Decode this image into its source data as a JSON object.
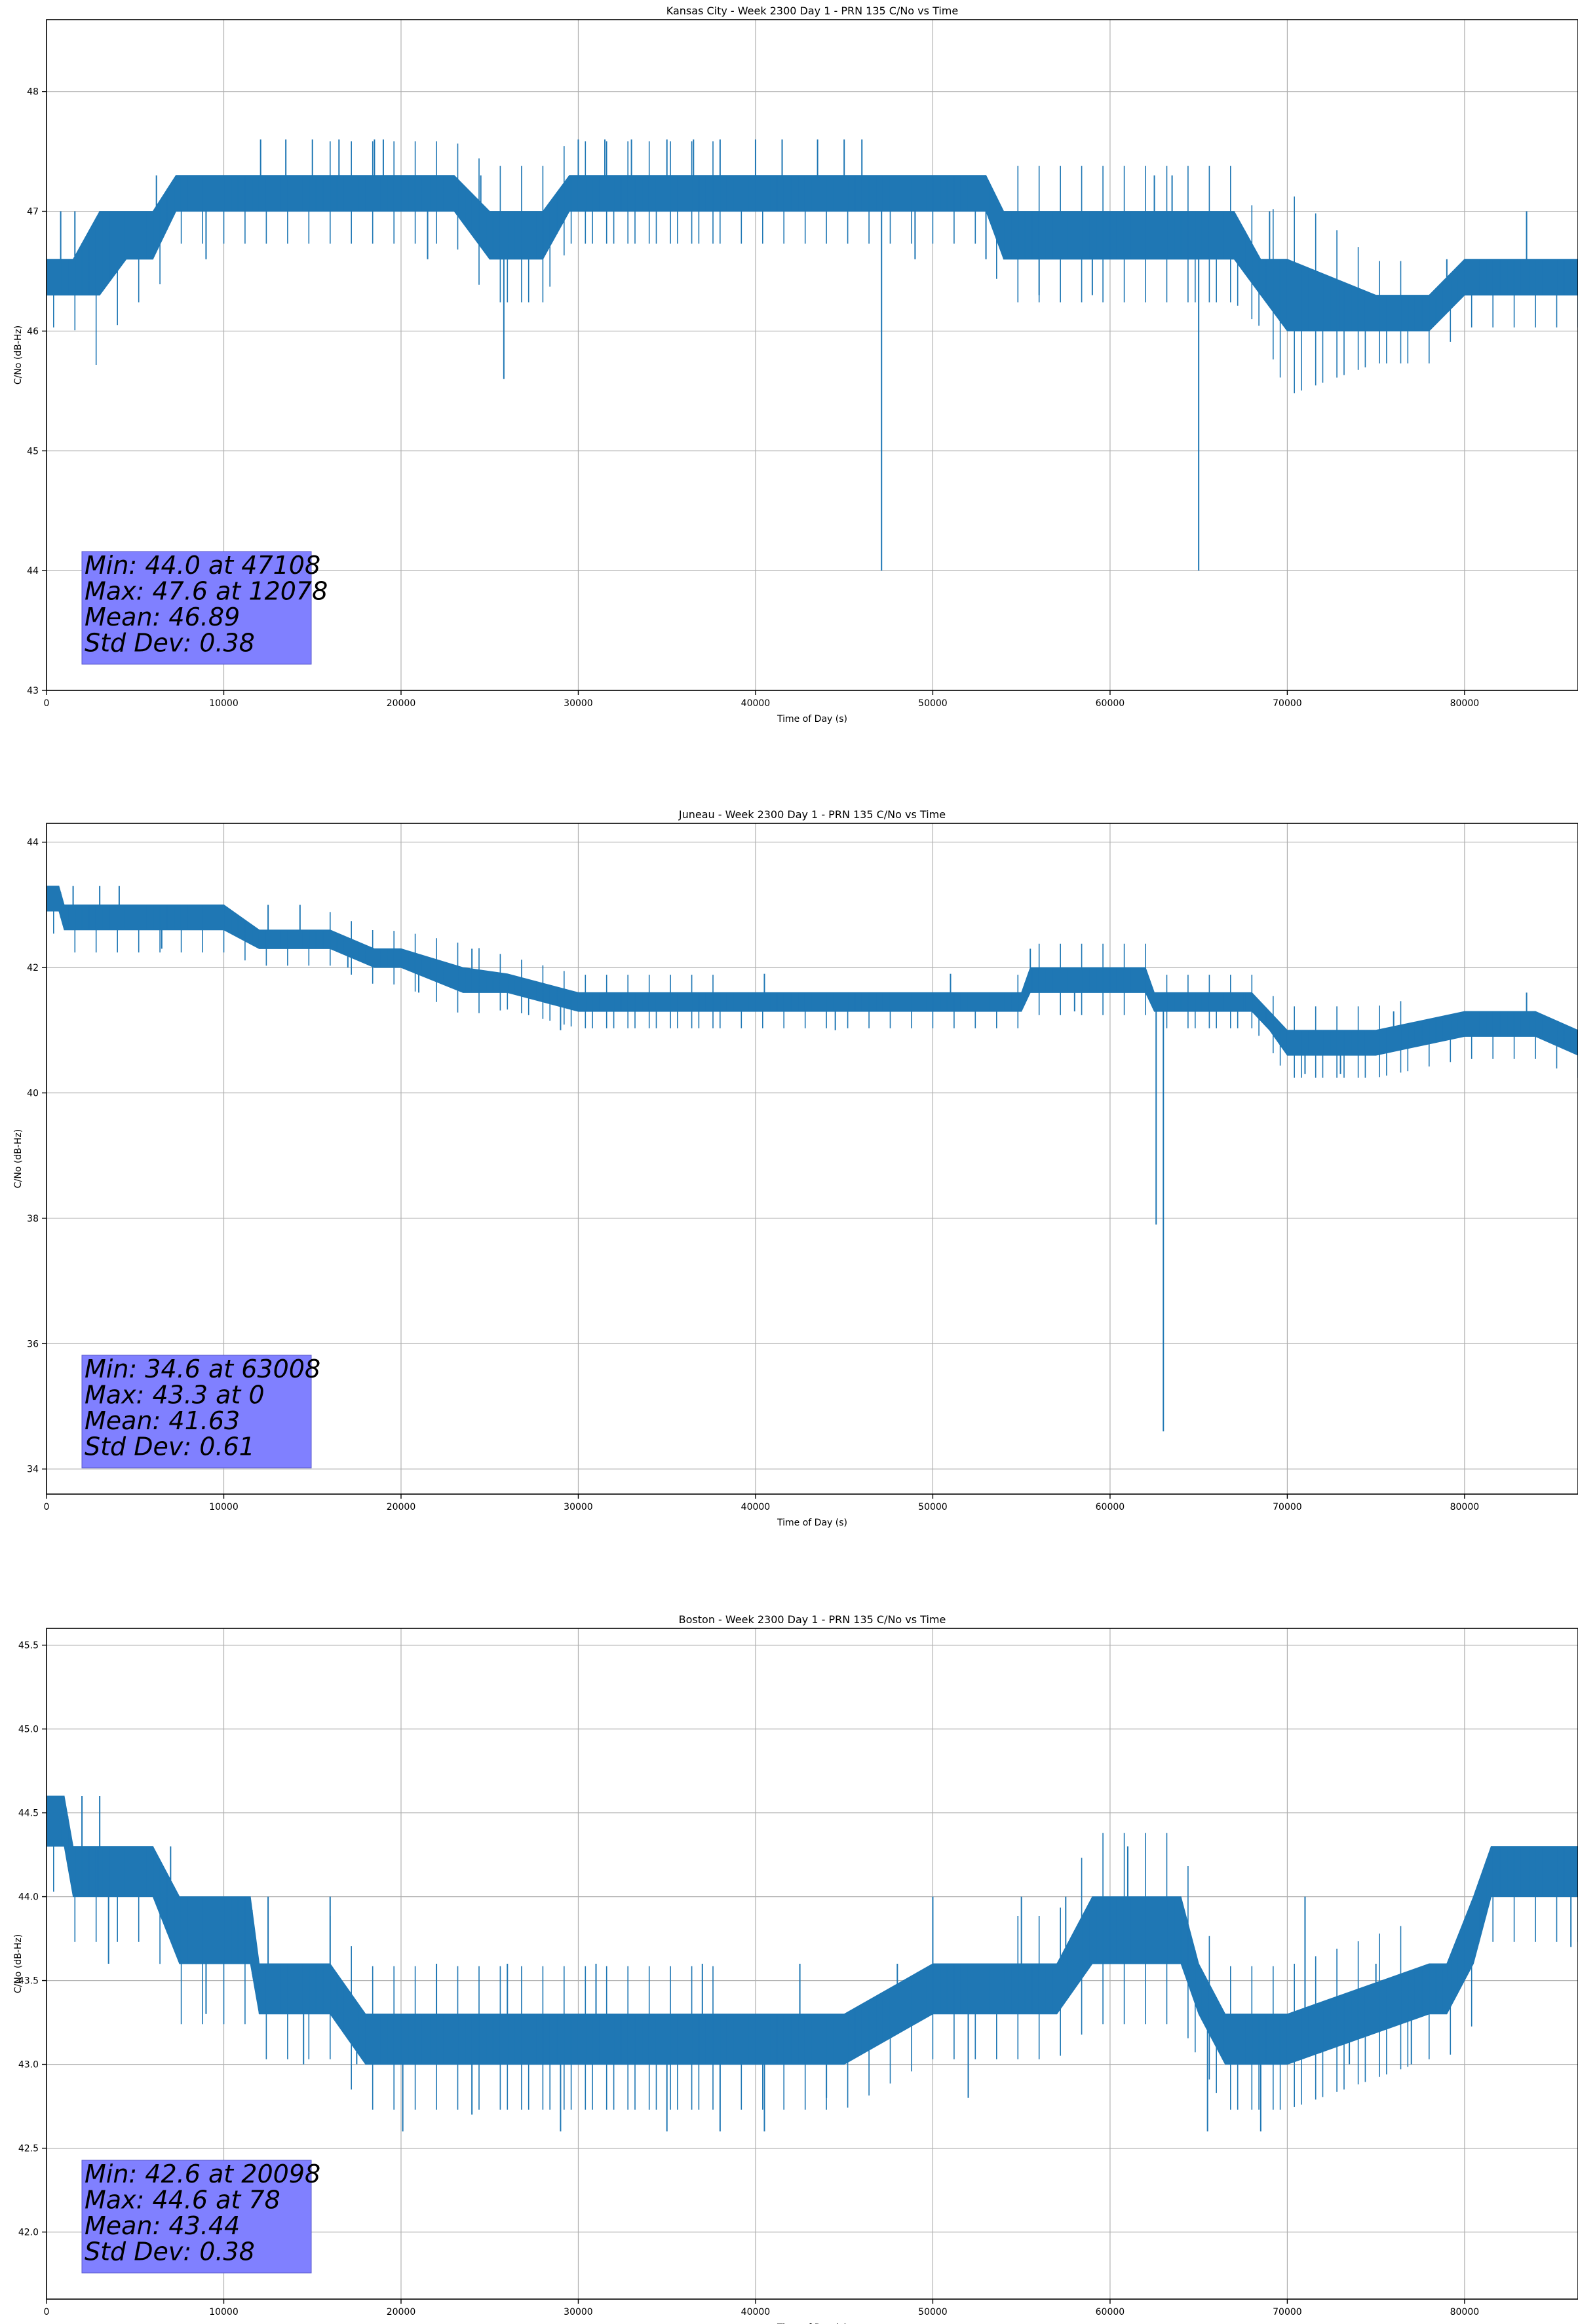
{
  "colors": {
    "series": "#1f77b4",
    "stats_box": "#8080ff",
    "grid": "#b0b0b0"
  },
  "chart_data": [
    {
      "type": "line",
      "title": "Kansas City - Week 2300 Day 1 - PRN 135 C/No vs Time",
      "xlabel": "Time of Day (s)",
      "ylabel": "C/No (dB-Hz)",
      "xlim": [
        0,
        86400
      ],
      "ylim": [
        43.0,
        48.6
      ],
      "grid": true,
      "x_ticks": [
        0,
        10000,
        20000,
        30000,
        40000,
        50000,
        60000,
        70000,
        80000
      ],
      "x_tick_labels": [
        "0",
        "10000",
        "20000",
        "30000",
        "40000",
        "50000",
        "60000",
        "70000",
        "80000"
      ],
      "y_ticks": [
        43,
        44,
        45,
        46,
        47,
        48
      ],
      "y_tick_labels": [
        "43",
        "44",
        "45",
        "46",
        "47",
        "48"
      ],
      "band": {
        "x": [
          0,
          1500,
          3000,
          4500,
          6000,
          7300,
          10000,
          14000,
          18000,
          21000,
          23000,
          25000,
          27000,
          28000,
          29500,
          33000,
          38000,
          42000,
          44000,
          47000,
          50000,
          53000,
          54000,
          57000,
          58000,
          62000,
          67000,
          68500,
          70000,
          75000,
          78000,
          80000,
          86400
        ],
        "low": [
          46.3,
          46.3,
          46.3,
          46.6,
          46.6,
          47.0,
          47.0,
          47.0,
          47.0,
          47.0,
          47.0,
          46.6,
          46.6,
          46.6,
          47.0,
          47.0,
          47.0,
          47.0,
          47.0,
          47.0,
          47.0,
          47.0,
          46.6,
          46.6,
          46.6,
          46.6,
          46.6,
          46.3,
          46.0,
          46.0,
          46.0,
          46.3,
          46.3
        ],
        "high": [
          46.6,
          46.6,
          47.0,
          47.0,
          47.0,
          47.3,
          47.3,
          47.3,
          47.3,
          47.3,
          47.3,
          47.0,
          47.0,
          47.0,
          47.3,
          47.3,
          47.3,
          47.3,
          47.3,
          47.3,
          47.3,
          47.3,
          47.0,
          47.0,
          47.0,
          47.0,
          47.0,
          46.6,
          46.6,
          46.3,
          46.3,
          46.6,
          46.6
        ]
      },
      "spikes": [
        [
          800,
          47.0
        ],
        [
          1600,
          47.0
        ],
        [
          6200,
          47.3
        ],
        [
          9000,
          46.6
        ],
        [
          12078,
          47.6
        ],
        [
          13500,
          47.6
        ],
        [
          15000,
          47.6
        ],
        [
          16500,
          47.6
        ],
        [
          18500,
          47.6
        ],
        [
          19000,
          47.6
        ],
        [
          21500,
          46.6
        ],
        [
          25800,
          45.6
        ],
        [
          24500,
          47.3
        ],
        [
          30000,
          47.6
        ],
        [
          31500,
          47.6
        ],
        [
          33000,
          47.6
        ],
        [
          35000,
          47.6
        ],
        [
          36500,
          47.6
        ],
        [
          38000,
          47.6
        ],
        [
          40000,
          47.6
        ],
        [
          41500,
          47.6
        ],
        [
          43500,
          47.6
        ],
        [
          45000,
          47.6
        ],
        [
          46000,
          47.6
        ],
        [
          47108,
          44.0
        ],
        [
          49000,
          46.6
        ],
        [
          53000,
          46.6
        ],
        [
          56000,
          46.3
        ],
        [
          59000,
          46.3
        ],
        [
          62500,
          47.3
        ],
        [
          63500,
          47.3
        ],
        [
          65000,
          44.0
        ],
        [
          66500,
          47.0
        ],
        [
          69000,
          47.0
        ],
        [
          73000,
          46.0
        ],
        [
          76000,
          46.3
        ],
        [
          79000,
          46.6
        ],
        [
          83500,
          47.0
        ]
      ],
      "stats": [
        "Min: 44.0 at 47108",
        "Max: 47.6 at 12078",
        "Mean: 46.89",
        "Std Dev: 0.38"
      ]
    },
    {
      "type": "line",
      "title": "Juneau - Week 2300 Day 1 - PRN 135 C/No vs Time",
      "xlabel": "Time of Day (s)",
      "ylabel": "C/No (dB-Hz)",
      "xlim": [
        0,
        86400
      ],
      "ylim": [
        33.6,
        44.3
      ],
      "grid": true,
      "x_ticks": [
        0,
        10000,
        20000,
        30000,
        40000,
        50000,
        60000,
        70000,
        80000
      ],
      "x_tick_labels": [
        "0",
        "10000",
        "20000",
        "30000",
        "40000",
        "50000",
        "60000",
        "70000",
        "80000"
      ],
      "y_ticks": [
        34,
        36,
        38,
        40,
        42,
        44
      ],
      "y_tick_labels": [
        "34",
        "36",
        "38",
        "40",
        "42",
        "44"
      ],
      "band": {
        "x": [
          0,
          700,
          1000,
          5000,
          10000,
          12000,
          14000,
          16000,
          18500,
          20000,
          23500,
          26000,
          30000,
          35000,
          40000,
          45000,
          50000,
          55000,
          55500,
          58000,
          62000,
          62500,
          66000,
          68000,
          69000,
          70000,
          75000,
          80000,
          84000,
          86400
        ],
        "low": [
          42.9,
          42.9,
          42.6,
          42.6,
          42.6,
          42.3,
          42.3,
          42.3,
          42.0,
          42.0,
          41.6,
          41.6,
          41.3,
          41.3,
          41.3,
          41.3,
          41.3,
          41.3,
          41.6,
          41.6,
          41.6,
          41.3,
          41.3,
          41.3,
          41.0,
          40.6,
          40.6,
          40.9,
          40.9,
          40.6
        ],
        "high": [
          43.3,
          43.3,
          43.0,
          43.0,
          43.0,
          42.6,
          42.6,
          42.6,
          42.3,
          42.3,
          42.0,
          41.9,
          41.6,
          41.6,
          41.6,
          41.6,
          41.6,
          41.6,
          42.0,
          42.0,
          42.0,
          41.6,
          41.6,
          41.6,
          41.3,
          41.0,
          41.0,
          41.3,
          41.3,
          41.0
        ]
      },
      "spikes": [
        [
          0,
          43.3
        ],
        [
          1500,
          43.3
        ],
        [
          3000,
          43.3
        ],
        [
          4100,
          43.3
        ],
        [
          6500,
          42.3
        ],
        [
          9500,
          43.0
        ],
        [
          12500,
          43.0
        ],
        [
          14300,
          43.0
        ],
        [
          17000,
          42.0
        ],
        [
          21000,
          41.6
        ],
        [
          24000,
          42.3
        ],
        [
          29000,
          41.0
        ],
        [
          33500,
          41.6
        ],
        [
          40500,
          41.9
        ],
        [
          44500,
          41.0
        ],
        [
          51000,
          41.9
        ],
        [
          55500,
          42.3
        ],
        [
          58000,
          41.3
        ],
        [
          63008,
          34.6
        ],
        [
          62600,
          37.9
        ],
        [
          67500,
          41.3
        ],
        [
          71000,
          40.3
        ],
        [
          73000,
          40.3
        ],
        [
          76000,
          41.3
        ],
        [
          83500,
          41.6
        ]
      ],
      "stats": [
        "Min: 34.6 at 63008",
        "Max: 43.3 at 0",
        "Mean: 41.63",
        "Std Dev: 0.61"
      ]
    },
    {
      "type": "line",
      "title": "Boston - Week 2300 Day 1 - PRN 135 C/No vs Time",
      "xlabel": "Time of Day (s)",
      "ylabel": "C/No (dB-Hz)",
      "xlim": [
        0,
        86400
      ],
      "ylim": [
        41.6,
        45.6
      ],
      "grid": true,
      "x_ticks": [
        0,
        10000,
        20000,
        30000,
        40000,
        50000,
        60000,
        70000,
        80000
      ],
      "x_tick_labels": [
        "0",
        "10000",
        "20000",
        "30000",
        "40000",
        "50000",
        "60000",
        "70000",
        "80000"
      ],
      "y_ticks": [
        42.0,
        42.5,
        43.0,
        43.5,
        44.0,
        44.5,
        45.0,
        45.5
      ],
      "y_tick_labels": [
        "42.0",
        "42.5",
        "43.0",
        "43.5",
        "44.0",
        "44.5",
        "45.0",
        "45.5"
      ],
      "band": {
        "x": [
          0,
          1000,
          1500,
          4000,
          6000,
          7500,
          9000,
          11500,
          12000,
          15000,
          16000,
          18000,
          20000,
          30000,
          40000,
          45000,
          50000,
          52000,
          57000,
          59000,
          62000,
          64000,
          65000,
          66500,
          67000,
          69000,
          70000,
          78000,
          79000,
          80500,
          81500,
          86400
        ],
        "low": [
          44.3,
          44.3,
          44.0,
          44.0,
          44.0,
          43.6,
          43.6,
          43.6,
          43.3,
          43.3,
          43.3,
          43.0,
          43.0,
          43.0,
          43.0,
          43.0,
          43.3,
          43.3,
          43.3,
          43.6,
          43.6,
          43.6,
          43.3,
          43.0,
          43.0,
          43.0,
          43.0,
          43.3,
          43.3,
          43.6,
          44.0,
          44.0
        ],
        "high": [
          44.6,
          44.6,
          44.3,
          44.3,
          44.3,
          44.0,
          44.0,
          44.0,
          43.6,
          43.6,
          43.6,
          43.3,
          43.3,
          43.3,
          43.3,
          43.3,
          43.6,
          43.6,
          43.6,
          44.0,
          44.0,
          44.0,
          43.6,
          43.3,
          43.3,
          43.3,
          43.3,
          43.6,
          43.6,
          44.0,
          44.3,
          44.3
        ]
      },
      "spikes": [
        [
          78,
          44.6
        ],
        [
          2000,
          44.6
        ],
        [
          3000,
          44.6
        ],
        [
          2900,
          44.0
        ],
        [
          3500,
          43.6
        ],
        [
          7000,
          44.3
        ],
        [
          9000,
          43.3
        ],
        [
          12500,
          44.0
        ],
        [
          14500,
          43.0
        ],
        [
          16000,
          44.0
        ],
        [
          17500,
          43.0
        ],
        [
          20098,
          42.6
        ],
        [
          22000,
          43.6
        ],
        [
          24000,
          42.7
        ],
        [
          26000,
          43.6
        ],
        [
          29000,
          42.6
        ],
        [
          31000,
          43.6
        ],
        [
          35000,
          42.6
        ],
        [
          37000,
          43.6
        ],
        [
          38000,
          42.6
        ],
        [
          40500,
          42.6
        ],
        [
          42500,
          43.6
        ],
        [
          44000,
          42.8
        ],
        [
          48000,
          43.6
        ],
        [
          50000,
          44.0
        ],
        [
          52000,
          42.8
        ],
        [
          55000,
          44.0
        ],
        [
          57500,
          44.0
        ],
        [
          61000,
          44.3
        ],
        [
          63000,
          43.6
        ],
        [
          65500,
          42.6
        ],
        [
          68500,
          42.6
        ],
        [
          71000,
          44.0
        ],
        [
          73500,
          43.0
        ],
        [
          75000,
          43.6
        ],
        [
          77000,
          43.0
        ],
        [
          79000,
          43.5
        ],
        [
          82000,
          44.3
        ],
        [
          86000,
          43.7
        ]
      ],
      "stats": [
        "Min: 42.6 at 20098",
        "Max: 44.6 at 78",
        "Mean: 43.44",
        "Std Dev: 0.38"
      ]
    }
  ]
}
